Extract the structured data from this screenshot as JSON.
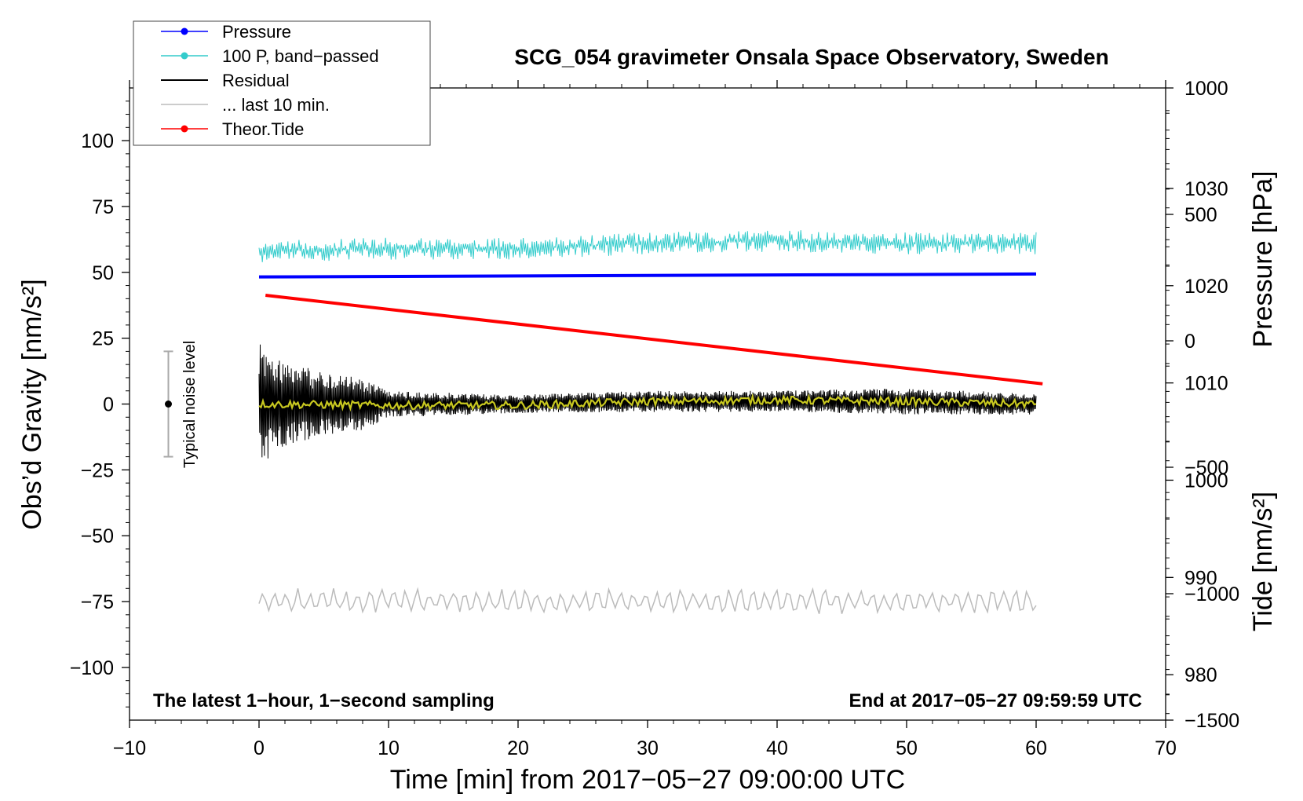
{
  "chart_data": {
    "type": "line",
    "title": "SCG_054 gravimeter Onsala Space Observatory, Sweden",
    "xlabel": "Time [min] from 2017−05−27 09:00:00 UTC",
    "ylabel_left": "Obs’d Gravity [nm/s²]",
    "ylabel_right_top": "Pressure [hPa]",
    "ylabel_right_bottom": "Tide [nm/s²]",
    "xlim": [
      -10,
      70
    ],
    "ylim": [
      -120,
      120
    ],
    "pressure_ylim": [
      975.33,
      1040.33
    ],
    "tide_ylim": [
      -1500,
      1000
    ],
    "x_ticks": [
      "−10",
      "0",
      "10",
      "20",
      "30",
      "40",
      "50",
      "60",
      "70"
    ],
    "y_ticks": [
      "100",
      "75",
      "50",
      "25",
      "0",
      "−25",
      "−50",
      "−75",
      "−100"
    ],
    "pressure_ticks": [
      "1030",
      "1020",
      "1010",
      "1000",
      "990",
      "980"
    ],
    "tide_ticks": [
      "1000",
      "500",
      "0",
      "−500",
      "−1000",
      "−1500"
    ],
    "annotation_left": "The latest 1−hour, 1−second sampling",
    "annotation_right": "End at 2017−05−27 09:59:59 UTC",
    "noise_label": "Typical noise level",
    "noise_bar": {
      "x": -7,
      "center": 0,
      "low": -20,
      "high": 20
    },
    "legend": [
      {
        "label": "Pressure",
        "color": "#0000ff",
        "marker": true
      },
      {
        "label": "100 P, band−passed",
        "color": "#33cccc",
        "marker": true
      },
      {
        "label": "Residual",
        "color": "#000000",
        "marker": false
      },
      {
        "label": "... last 10 min.",
        "color": "#bbbbbb",
        "marker": false
      },
      {
        "label": "Theor.Tide",
        "color": "#ff0000",
        "marker": true
      }
    ],
    "series": [
      {
        "name": "Pressure",
        "axis": "pressure_hPa",
        "color": "#0000ff",
        "x": [
          0,
          60
        ],
        "values": [
          1020.9,
          1021.2
        ]
      },
      {
        "name": "100 P, band−passed",
        "axis": "gravity",
        "color": "#33cccc",
        "x": [
          0,
          10,
          20,
          30,
          40,
          50,
          60
        ],
        "values": [
          58,
          59,
          59,
          61,
          62,
          61,
          61
        ],
        "noise_amplitude": 6
      },
      {
        "name": "Residual",
        "axis": "gravity",
        "color": "#000000",
        "x": [
          0,
          2,
          5,
          8,
          10,
          20,
          30,
          40,
          50,
          60
        ],
        "values": [
          0,
          0,
          0,
          0,
          0,
          0,
          1,
          1,
          1,
          0
        ],
        "amplitude": [
          24,
          16,
          12,
          10,
          5,
          3.5,
          4,
          4,
          5,
          4
        ]
      },
      {
        "name": "Residual smoothed",
        "axis": "gravity",
        "color": "#c8c820",
        "x": [
          0,
          10,
          20,
          30,
          40,
          50,
          60
        ],
        "values": [
          0,
          -0.5,
          -0.5,
          1,
          1.5,
          1,
          0
        ]
      },
      {
        "name": "... last 10 min.",
        "axis": "gravity",
        "color": "#bbbbbb",
        "x": [
          0,
          60
        ],
        "values": [
          -75,
          -75
        ],
        "amplitude": 6
      },
      {
        "name": "Theor.Tide",
        "axis": "tide_nm_s2",
        "color": "#ff0000",
        "x": [
          0.5,
          60.5
        ],
        "values": [
          180,
          -170
        ]
      }
    ]
  }
}
